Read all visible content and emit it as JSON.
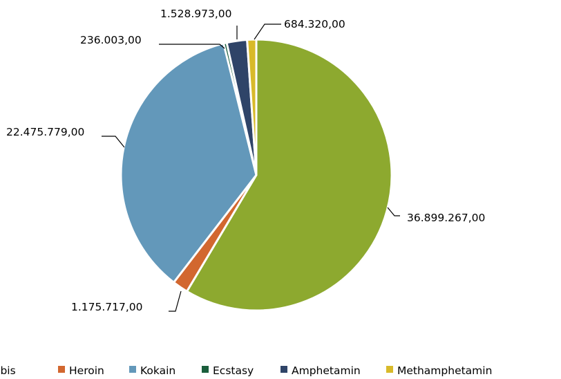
{
  "chart_data": {
    "type": "pie",
    "title": "",
    "categories": [
      "Cannabis",
      "Heroin",
      "Kokain",
      "Ecstasy",
      "Amphetamin",
      "Methamphetamin"
    ],
    "values": [
      36899267.0,
      1175717.0,
      22475779.0,
      236003.0,
      1528973.0,
      684320.0
    ],
    "data_labels": [
      "36.899.267,00",
      "1.175.717,00",
      "22.475.779,00",
      "236.003,00",
      "1.528.973,00",
      "684.320,00"
    ],
    "colors": [
      "#8DA92F",
      "#D2672F",
      "#6398BA",
      "#1A5E3C",
      "#2F4468",
      "#D8BA2A"
    ],
    "legend_position": "bottom",
    "legend": [
      {
        "label": "Cannabis",
        "color": "#8DA92F"
      },
      {
        "label": "Heroin",
        "color": "#D2672F"
      },
      {
        "label": "Kokain",
        "color": "#6398BA"
      },
      {
        "label": "Ecstasy",
        "color": "#1A5E3C"
      },
      {
        "label": "Amphetamin",
        "color": "#2F4468"
      },
      {
        "label": "Methamphetamin",
        "color": "#D8BA2A"
      }
    ]
  }
}
